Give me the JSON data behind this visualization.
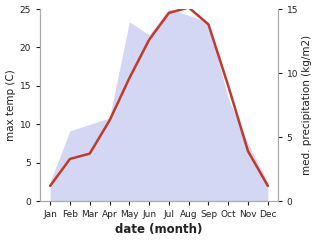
{
  "months": [
    "Jan",
    "Feb",
    "Mar",
    "Apr",
    "May",
    "Jun",
    "Jul",
    "Aug",
    "Sep",
    "Oct",
    "Nov",
    "Dec"
  ],
  "month_positions": [
    1,
    2,
    3,
    4,
    5,
    6,
    7,
    8,
    9,
    10,
    11,
    12
  ],
  "temp": [
    2.0,
    5.5,
    6.2,
    10.5,
    16.0,
    21.0,
    24.5,
    25.2,
    23.0,
    15.0,
    6.5,
    2.0
  ],
  "precip": [
    1.5,
    5.5,
    6.0,
    6.5,
    14.0,
    13.0,
    15.0,
    14.5,
    14.0,
    8.0,
    4.5,
    1.5
  ],
  "temp_color": "#c0392b",
  "precip_fill_color": "#c5caf0",
  "precip_fill_alpha": 0.75,
  "temp_linewidth": 1.8,
  "ylim_left": [
    0,
    25
  ],
  "ylim_right": [
    0,
    15
  ],
  "yticks_left": [
    0,
    5,
    10,
    15,
    20,
    25
  ],
  "yticks_right": [
    0,
    5,
    10,
    15
  ],
  "xlabel": "date (month)",
  "ylabel_left": "max temp (C)",
  "ylabel_right": "med. precipitation (kg/m2)",
  "bg_color": "#ffffff",
  "spine_color": "#aaaaaa",
  "tick_color": "#222222",
  "label_fontsize": 7.5,
  "tick_fontsize": 6.5,
  "xlabel_fontsize": 8.5
}
